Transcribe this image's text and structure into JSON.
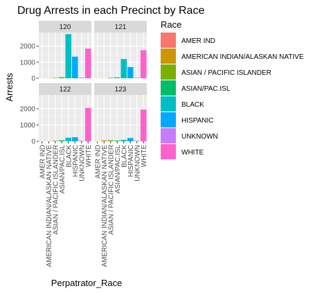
{
  "chart_data": {
    "type": "bar",
    "title": "Drug Arrests in each Precinct by Race",
    "xlabel": "Perpatrator_Race",
    "ylabel": "Arrests",
    "ylim": [
      0,
      2850
    ],
    "yticks": [
      0,
      1000,
      2000
    ],
    "grid": true,
    "legend_position": "right",
    "legend_title": "Race",
    "categories": [
      "AMER IND",
      "AMERICAN INDIAN/ALASKAN NATIVE",
      "ASIAN / PACIFIC ISLANDER",
      "ASIAN/PAC.ISL",
      "BLACK",
      "HISPANIC",
      "UNKNOWN",
      "WHITE"
    ],
    "colors": [
      "#F8766D",
      "#CD9600",
      "#7CAE00",
      "#00BE67",
      "#00BFC4",
      "#00A9FF",
      "#C77CFF",
      "#FF61CC"
    ],
    "facets": [
      {
        "label": "120",
        "values": [
          5,
          10,
          30,
          60,
          2750,
          1350,
          40,
          1850
        ]
      },
      {
        "label": "121",
        "values": [
          5,
          5,
          30,
          50,
          1200,
          700,
          30,
          1750
        ]
      },
      {
        "label": "122",
        "values": [
          5,
          5,
          30,
          60,
          220,
          250,
          30,
          2050
        ]
      },
      {
        "label": "123",
        "values": [
          5,
          50,
          60,
          40,
          90,
          200,
          30,
          1950
        ]
      }
    ]
  }
}
